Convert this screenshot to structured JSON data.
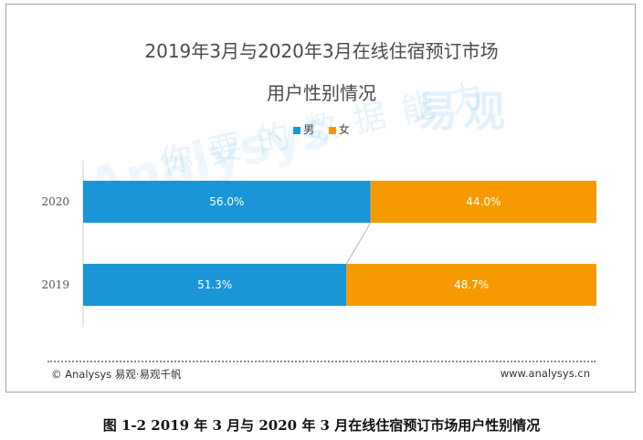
{
  "chart_data": {
    "type": "bar",
    "orientation": "horizontal",
    "stacked": true,
    "title_line1": "2019年3月与2020年3月在线住宿预订市场",
    "title_line2": "用户性别情况",
    "categories": [
      "2020",
      "2019"
    ],
    "series": [
      {
        "name": "男",
        "values": [
          56.0,
          51.3
        ],
        "labels": [
          "56.0%",
          "51.3%"
        ],
        "color": "#1a96d8"
      },
      {
        "name": "女",
        "values": [
          44.0,
          48.7
        ],
        "labels": [
          "44.0%",
          "48.7%"
        ],
        "color": "#f79a00"
      }
    ],
    "xlim": [
      0,
      100
    ],
    "legend_position": "top-center",
    "grid": false
  },
  "watermark": {
    "brand": "易观",
    "brand_en": "Analysys",
    "slogan": "你要的数据能力"
  },
  "footer": {
    "left": "© Analysys 易观·易观千帆",
    "right": "www.analysys.cn"
  },
  "caption": "图 1-2 2019 年 3 月与 2020 年 3 月在线住宿预订市场用户性别情况"
}
